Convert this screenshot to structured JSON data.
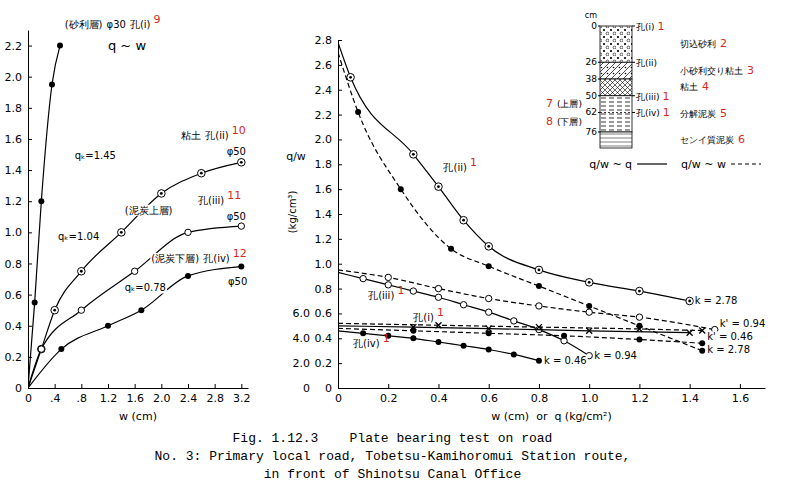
{
  "chart_data": [
    {
      "type": "line",
      "title": "q ~ w",
      "x_label": "w (cm)",
      "xlim": [
        0,
        3.3
      ],
      "xticks": [
        0,
        {
          "value": 0.4,
          "label": ".4"
        },
        {
          "value": 0.8,
          "label": ".8"
        },
        1.2,
        1.6,
        {
          "value": 2,
          "label": "2.0"
        },
        2.4,
        2.8,
        3.2
      ],
      "ylim": [
        0,
        2.3
      ],
      "yticks": [
        0,
        0.2,
        0.4,
        0.6,
        0.8,
        {
          "value": 1,
          "label": "1.0"
        },
        1.2,
        1.4,
        1.6,
        1.8,
        {
          "value": 2,
          "label": "2.0"
        },
        2.2
      ],
      "grid": false,
      "series": [
        {
          "name": "孔(i)",
          "layer": "(砂利層)",
          "plate": "φ30",
          "annotation_number": "9",
          "color": "#000000",
          "marker": "filled-circle",
          "line_style": "solid",
          "x": [
            0,
            0.1,
            0.2,
            0.36,
            0.48
          ],
          "values": [
            0,
            0.55,
            1.2,
            1.95,
            2.2
          ]
        },
        {
          "name": "孔(ii)",
          "layer": "粘土",
          "plate": "φ50",
          "ultimate_label": "qₖ=1.45",
          "annotation_number": "10",
          "color": "#000000",
          "marker": "circle-dot",
          "line_style": "solid",
          "x": [
            0,
            0.2,
            0.4,
            0.8,
            1.4,
            2.0,
            2.6,
            3.2
          ],
          "values": [
            0,
            0.25,
            0.5,
            0.75,
            1.0,
            1.25,
            1.38,
            1.45
          ]
        },
        {
          "name": "孔(iii)",
          "layer": "(泥炭上層)",
          "plate": "φ50",
          "ultimate_label": "qₖ=1.04",
          "annotation_number": "11",
          "color": "#000000",
          "marker": "open-circle",
          "line_style": "solid",
          "x": [
            0,
            0.2,
            0.8,
            1.6,
            2.4,
            3.2
          ],
          "values": [
            0,
            0.25,
            0.5,
            0.75,
            1.0,
            1.04
          ]
        },
        {
          "name": "孔(iv)",
          "layer": "(泥炭下層)",
          "plate": "φ50",
          "ultimate_label": "qₖ=0.78",
          "annotation_number": "12",
          "color": "#000000",
          "marker": "filled-circle",
          "line_style": "solid",
          "x": [
            0,
            0.5,
            1.2,
            1.7,
            2.4,
            3.2
          ],
          "values": [
            0,
            0.25,
            0.4,
            0.5,
            0.72,
            0.78
          ]
        }
      ]
    },
    {
      "type": "line",
      "x_label": "w (cm)  or  q (kg/cm²)",
      "y_label": "q/w",
      "y_unit": "(kg/cm³)",
      "xlim": [
        0,
        1.7
      ],
      "xticks": [
        0,
        0.2,
        0.4,
        0.6,
        0.8,
        {
          "value": 1,
          "label": "1.0"
        },
        1.2,
        1.4,
        1.6
      ],
      "ylim": [
        0,
        2.8
      ],
      "yticks": [
        0,
        0.2,
        0.4,
        0.6,
        0.8,
        {
          "value": 1,
          "label": "1.0"
        },
        1.2,
        1.4,
        1.6,
        1.8,
        {
          "value": 2,
          "label": "2.0"
        },
        2.2,
        2.4,
        2.6,
        2.8
      ],
      "y2lim": [
        0,
        28
      ],
      "y2ticks": [
        0,
        {
          "value": 2,
          "label": "2.0"
        },
        {
          "value": 4,
          "label": "4.0"
        },
        {
          "value": 6,
          "label": "6.0"
        }
      ],
      "grid": false,
      "legend": "top-right",
      "legend_items": [
        {
          "label": "q/w ~ q",
          "line_style": "solid"
        },
        {
          "label": "q/w ~ w",
          "line_style": "dashed"
        }
      ],
      "series": [
        {
          "name": "孔(ii)",
          "annotation_number": "1",
          "end_label": "k = 2.78",
          "color": "#000000",
          "marker": "circle-dot",
          "line_style": "solid",
          "x": [
            0,
            0.05,
            0.3,
            0.4,
            0.5,
            0.6,
            0.8,
            1.0,
            1.2,
            1.4
          ],
          "values": [
            2.78,
            2.5,
            1.88,
            1.62,
            1.35,
            1.14,
            0.95,
            0.85,
            0.78,
            0.7
          ]
        },
        {
          "end_label": "k = 2.78",
          "color": "#000000",
          "marker": "filled-circle",
          "line_style": "dashed",
          "x": [
            0,
            0.08,
            0.25,
            0.45,
            0.6,
            0.8,
            1.0,
            1.2,
            1.45
          ],
          "values": [
            2.7,
            2.22,
            1.6,
            1.12,
            0.98,
            0.82,
            0.66,
            0.5,
            0.3
          ]
        },
        {
          "name": "孔(iii)",
          "annotation_number": "1",
          "end_label": "k = 0.94",
          "color": "#000000",
          "marker": "open-circle",
          "line_style": "solid",
          "x": [
            0,
            0.1,
            0.2,
            0.3,
            0.4,
            0.5,
            0.6,
            0.7,
            0.8,
            0.9,
            1.0
          ],
          "values": [
            0.93,
            0.88,
            0.83,
            0.78,
            0.73,
            0.67,
            0.61,
            0.54,
            0.47,
            0.38,
            0.26
          ]
        },
        {
          "end_label": "k' = 0.94",
          "color": "#000000",
          "marker": "open-circle",
          "line_style": "dashed",
          "x": [
            0,
            0.2,
            0.4,
            0.6,
            0.8,
            1.0,
            1.2,
            1.5
          ],
          "values": [
            0.95,
            0.89,
            0.8,
            0.72,
            0.66,
            0.61,
            0.57,
            0.47
          ]
        },
        {
          "name": "孔(i)",
          "annotation_number": "1",
          "axis": "y2",
          "color": "#000000",
          "marker": "x",
          "line_style": "solid",
          "x": [
            0,
            0.3,
            0.6,
            1.0,
            1.4
          ],
          "values": [
            5.0,
            4.9,
            4.78,
            4.6,
            4.45
          ]
        },
        {
          "axis": "y2",
          "color": "#000000",
          "marker": "x",
          "line_style": "dashed",
          "x": [
            0,
            0.4,
            0.8,
            1.2,
            1.45
          ],
          "values": [
            5.2,
            5.05,
            4.9,
            4.75,
            4.62
          ]
        },
        {
          "name": "孔(iv)",
          "annotation_number": "1",
          "end_label": "k = 0.46",
          "color": "#000000",
          "marker": "filled-circle",
          "line_style": "solid",
          "x": [
            0,
            0.1,
            0.2,
            0.3,
            0.4,
            0.5,
            0.6,
            0.7,
            0.8
          ],
          "values": [
            0.46,
            0.44,
            0.42,
            0.4,
            0.37,
            0.34,
            0.31,
            0.27,
            0.22
          ]
        },
        {
          "end_label": "k' = 0.46",
          "color": "#000000",
          "marker": "filled-circle",
          "line_style": "dashed",
          "x": [
            0,
            0.3,
            0.6,
            0.9,
            1.2,
            1.45
          ],
          "values": [
            0.48,
            0.46,
            0.44,
            0.42,
            0.39,
            0.36
          ]
        }
      ]
    }
  ],
  "soil_column": {
    "unit": "cm",
    "depths": [
      0,
      26,
      38,
      50,
      62,
      76
    ],
    "layers": [
      {
        "name": "切込砂利",
        "top": 0,
        "bottom": 26,
        "annotation_number": "2"
      },
      {
        "name": "小砂利交り粘土",
        "top": 26,
        "bottom": 38,
        "annotation_number": "3"
      },
      {
        "name": "粘土",
        "top": 38,
        "bottom": 50,
        "annotation_number": "4"
      },
      {
        "name": "分解泥炭",
        "top": 50,
        "bottom": 76,
        "annotation_number": "5",
        "sublayers": [
          {
            "name": "(上層)",
            "top": 50,
            "bottom": 62,
            "annotation_number": "7"
          },
          {
            "name": "(下層)",
            "top": 62,
            "bottom": 76,
            "annotation_number": "8"
          }
        ]
      },
      {
        "name": "センイ質泥炭",
        "top": 76,
        "bottom": null,
        "annotation_number": "6"
      }
    ],
    "tests": [
      {
        "name": "孔(i)",
        "depth": 0,
        "annotation_number": "1"
      },
      {
        "name": "孔(ii)",
        "depth": 26
      },
      {
        "name": "孔(iii)",
        "depth": 50,
        "annotation_number": "1"
      },
      {
        "name": "孔(iv)",
        "depth": 62,
        "annotation_number": "1"
      }
    ]
  },
  "caption": [
    "Fig. 1.12.3    Plate bearing test on road",
    "No. 3: Primary local road, Tobetsu-Kamihoromui Station route,",
    "in front of Shinotsu Canal Office"
  ]
}
